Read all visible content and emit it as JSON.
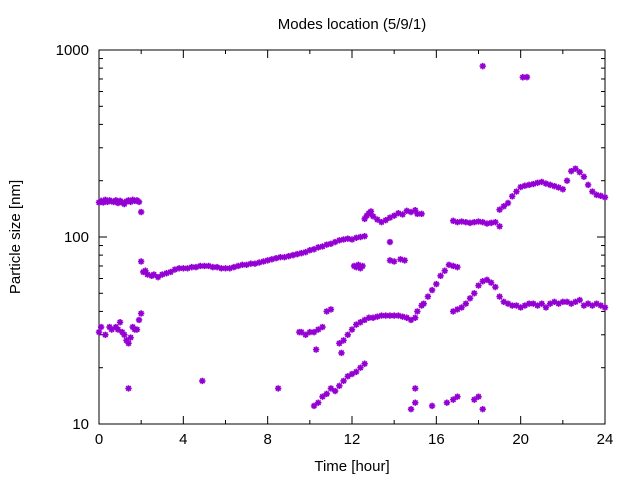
{
  "chart_data": {
    "type": "scatter",
    "title": "Modes location (5/9/1)",
    "xlabel": "Time [hour]",
    "ylabel": "Particle size [nm]",
    "xlim": [
      0,
      24
    ],
    "ylim": [
      10,
      1000
    ],
    "y_scale": "log",
    "x_ticks": [
      0,
      4,
      8,
      12,
      16,
      20,
      24
    ],
    "y_ticks": [
      10,
      100,
      1000
    ],
    "x_tick_labels": [
      "0",
      "4",
      "8",
      "12",
      "16",
      "20",
      "24"
    ],
    "y_tick_labels": [
      "10",
      "100",
      "1000"
    ],
    "grid": false,
    "legend": "none",
    "marker": "star",
    "color": "#9400d3",
    "series": [
      {
        "points": [
          [
            0.0,
            153
          ],
          [
            0.1,
            156
          ],
          [
            0.2,
            153
          ],
          [
            0.3,
            158
          ],
          [
            0.4,
            154
          ],
          [
            0.5,
            157
          ],
          [
            0.6,
            155
          ],
          [
            0.7,
            154
          ],
          [
            0.8,
            157
          ],
          [
            0.9,
            152
          ],
          [
            1.0,
            156
          ],
          [
            1.1,
            153
          ],
          [
            1.2,
            150
          ],
          [
            1.3,
            155
          ],
          [
            1.4,
            157
          ],
          [
            1.5,
            154
          ],
          [
            1.6,
            158
          ],
          [
            1.7,
            156
          ],
          [
            1.8,
            157
          ],
          [
            1.9,
            154
          ],
          [
            2.0,
            136
          ],
          [
            2.0,
            74
          ],
          [
            2.1,
            65
          ],
          [
            2.2,
            66
          ],
          [
            2.3,
            63
          ],
          [
            2.5,
            62
          ],
          [
            2.6,
            63
          ],
          [
            2.8,
            61
          ],
          [
            3.0,
            63
          ],
          [
            3.2,
            64
          ],
          [
            3.4,
            65
          ],
          [
            3.6,
            67
          ],
          [
            3.8,
            68
          ],
          [
            4.0,
            68
          ],
          [
            4.2,
            68
          ],
          [
            4.4,
            69
          ],
          [
            4.6,
            69
          ],
          [
            4.8,
            70
          ],
          [
            5.0,
            70
          ],
          [
            5.2,
            70
          ],
          [
            5.4,
            69
          ],
          [
            5.6,
            69
          ],
          [
            5.8,
            68
          ],
          [
            6.0,
            68
          ],
          [
            6.2,
            68
          ],
          [
            6.4,
            69
          ],
          [
            6.6,
            70
          ],
          [
            6.8,
            71
          ],
          [
            7.0,
            71
          ],
          [
            7.2,
            72
          ],
          [
            7.4,
            72
          ],
          [
            7.6,
            73
          ],
          [
            7.8,
            74
          ],
          [
            8.0,
            75
          ],
          [
            8.2,
            76
          ],
          [
            8.4,
            77
          ],
          [
            8.6,
            78
          ],
          [
            8.8,
            78
          ],
          [
            9.0,
            79
          ],
          [
            9.2,
            80
          ],
          [
            9.4,
            81
          ],
          [
            9.6,
            82
          ],
          [
            9.8,
            83
          ],
          [
            10.0,
            85
          ],
          [
            10.2,
            86
          ],
          [
            10.4,
            88
          ],
          [
            10.6,
            89
          ],
          [
            10.8,
            91
          ],
          [
            11.0,
            92
          ],
          [
            11.2,
            94
          ],
          [
            11.4,
            96
          ],
          [
            11.6,
            97
          ],
          [
            11.8,
            98
          ],
          [
            12.0,
            97
          ],
          [
            12.2,
            99
          ],
          [
            12.4,
            100
          ],
          [
            12.6,
            101
          ],
          [
            12.1,
            70
          ],
          [
            12.2,
            69
          ],
          [
            12.3,
            71
          ],
          [
            12.4,
            68
          ],
          [
            12.5,
            70
          ],
          [
            12.6,
            125
          ],
          [
            12.7,
            130
          ],
          [
            12.8,
            134
          ],
          [
            12.9,
            137
          ],
          [
            13.0,
            129
          ],
          [
            13.2,
            124
          ],
          [
            13.4,
            120
          ],
          [
            13.6,
            123
          ],
          [
            13.8,
            127
          ],
          [
            14.0,
            130
          ],
          [
            14.2,
            134
          ],
          [
            14.4,
            132
          ],
          [
            14.6,
            138
          ],
          [
            14.8,
            136
          ],
          [
            15.0,
            139
          ],
          [
            15.1,
            133
          ],
          [
            15.3,
            133
          ],
          [
            13.8,
            94
          ],
          [
            13.8,
            75
          ],
          [
            14.0,
            74
          ],
          [
            14.3,
            76
          ],
          [
            14.5,
            75
          ],
          [
            16.8,
            122
          ],
          [
            17.0,
            120
          ],
          [
            17.2,
            121
          ],
          [
            17.4,
            120
          ],
          [
            17.6,
            119
          ],
          [
            17.8,
            120
          ],
          [
            18.0,
            121
          ],
          [
            18.2,
            120
          ],
          [
            18.4,
            118
          ],
          [
            18.6,
            119
          ],
          [
            18.8,
            120
          ],
          [
            19.0,
            114
          ],
          [
            18.2,
            820
          ],
          [
            20.1,
            715
          ],
          [
            20.3,
            716
          ],
          [
            19.0,
            140
          ],
          [
            19.2,
            146
          ],
          [
            19.4,
            152
          ],
          [
            19.6,
            165
          ],
          [
            19.8,
            175
          ],
          [
            20.0,
            185
          ],
          [
            20.2,
            188
          ],
          [
            20.4,
            190
          ],
          [
            20.6,
            192
          ],
          [
            20.8,
            195
          ],
          [
            21.0,
            197
          ],
          [
            21.2,
            193
          ],
          [
            21.4,
            190
          ],
          [
            21.6,
            187
          ],
          [
            21.8,
            184
          ],
          [
            22.0,
            180
          ],
          [
            22.2,
            200
          ],
          [
            22.4,
            225
          ],
          [
            22.6,
            232
          ],
          [
            22.8,
            222
          ],
          [
            23.0,
            210
          ],
          [
            23.2,
            190
          ],
          [
            23.4,
            175
          ],
          [
            23.6,
            168
          ],
          [
            23.8,
            166
          ],
          [
            24.0,
            163
          ],
          [
            0.0,
            31
          ],
          [
            0.1,
            33
          ],
          [
            0.3,
            30
          ],
          [
            0.5,
            33
          ],
          [
            0.6,
            32
          ],
          [
            0.8,
            33
          ],
          [
            0.9,
            32
          ],
          [
            1.0,
            35
          ],
          [
            1.1,
            31
          ],
          [
            1.2,
            30
          ],
          [
            1.3,
            28
          ],
          [
            1.4,
            27
          ],
          [
            1.5,
            29
          ],
          [
            1.6,
            33
          ],
          [
            1.7,
            32
          ],
          [
            1.8,
            32
          ],
          [
            1.9,
            36
          ],
          [
            2.0,
            39
          ],
          [
            1.4,
            15.5
          ],
          [
            4.9,
            17
          ],
          [
            8.5,
            15.5
          ],
          [
            9.5,
            31
          ],
          [
            9.6,
            31
          ],
          [
            9.8,
            30
          ],
          [
            10.0,
            31
          ],
          [
            10.2,
            31
          ],
          [
            10.4,
            32
          ],
          [
            10.6,
            33
          ],
          [
            10.3,
            25
          ],
          [
            10.8,
            40
          ],
          [
            11.0,
            41
          ],
          [
            10.2,
            12.5
          ],
          [
            10.4,
            13
          ],
          [
            10.6,
            14
          ],
          [
            10.8,
            14.5
          ],
          [
            11.0,
            15.5
          ],
          [
            11.2,
            15
          ],
          [
            11.4,
            16
          ],
          [
            11.6,
            17
          ],
          [
            11.8,
            18
          ],
          [
            12.0,
            18.5
          ],
          [
            12.2,
            19
          ],
          [
            12.4,
            20
          ],
          [
            12.6,
            21
          ],
          [
            11.5,
            24
          ],
          [
            11.4,
            27
          ],
          [
            11.6,
            28
          ],
          [
            11.8,
            30
          ],
          [
            12.0,
            32
          ],
          [
            12.2,
            34
          ],
          [
            12.4,
            35
          ],
          [
            12.6,
            36
          ],
          [
            12.8,
            37
          ],
          [
            13.0,
            37
          ],
          [
            13.2,
            37.5
          ],
          [
            13.4,
            38
          ],
          [
            13.6,
            38
          ],
          [
            13.8,
            38
          ],
          [
            14.0,
            38
          ],
          [
            14.2,
            38
          ],
          [
            14.4,
            37.5
          ],
          [
            14.6,
            37
          ],
          [
            14.8,
            36
          ],
          [
            15.0,
            37
          ],
          [
            15.1,
            40
          ],
          [
            15.3,
            43
          ],
          [
            15.4,
            44
          ],
          [
            15.6,
            48
          ],
          [
            15.8,
            52
          ],
          [
            16.0,
            56
          ],
          [
            16.2,
            62
          ],
          [
            16.4,
            66
          ],
          [
            16.6,
            71
          ],
          [
            16.8,
            70
          ],
          [
            17.0,
            69
          ],
          [
            14.8,
            12
          ],
          [
            15.0,
            13
          ],
          [
            15.0,
            15.5
          ],
          [
            15.8,
            12.5
          ],
          [
            16.5,
            13
          ],
          [
            16.8,
            13.5
          ],
          [
            17.0,
            14
          ],
          [
            18.2,
            12
          ],
          [
            17.8,
            13.5
          ],
          [
            18.0,
            14
          ],
          [
            16.8,
            40
          ],
          [
            17.0,
            41
          ],
          [
            17.2,
            42
          ],
          [
            17.4,
            44
          ],
          [
            17.6,
            47
          ],
          [
            17.8,
            50
          ],
          [
            18.0,
            55
          ],
          [
            18.2,
            58
          ],
          [
            18.4,
            59
          ],
          [
            18.6,
            57
          ],
          [
            18.8,
            54
          ],
          [
            19.0,
            48
          ],
          [
            19.2,
            45
          ],
          [
            19.4,
            44
          ],
          [
            19.6,
            43
          ],
          [
            19.8,
            43
          ],
          [
            20.0,
            42
          ],
          [
            20.2,
            43
          ],
          [
            20.4,
            44
          ],
          [
            20.6,
            44
          ],
          [
            20.8,
            43
          ],
          [
            21.0,
            44
          ],
          [
            21.2,
            42
          ],
          [
            21.4,
            44
          ],
          [
            21.6,
            45
          ],
          [
            21.8,
            44
          ],
          [
            22.0,
            45
          ],
          [
            22.2,
            45
          ],
          [
            22.4,
            44
          ],
          [
            22.6,
            45
          ],
          [
            22.8,
            46
          ],
          [
            23.0,
            43
          ],
          [
            23.2,
            44
          ],
          [
            23.4,
            43
          ],
          [
            23.6,
            44
          ],
          [
            23.8,
            43
          ],
          [
            24.0,
            42
          ]
        ]
      }
    ]
  }
}
